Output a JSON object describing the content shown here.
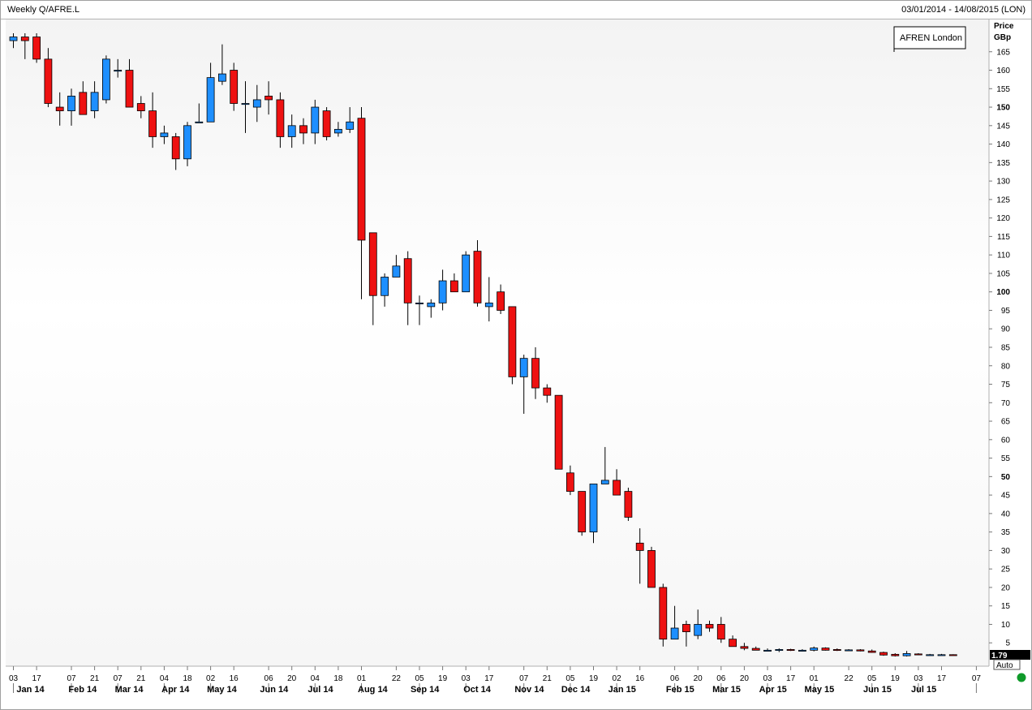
{
  "header": {
    "title": "Weekly Q/AFRE.L",
    "date_range": "03/01/2014 - 14/08/2015 (LON)"
  },
  "legend": {
    "label": "AFREN London"
  },
  "axis": {
    "title_line1": "Price",
    "title_line2": "GBp",
    "last_value": "1.79",
    "auto_label": "Auto"
  },
  "colors": {
    "up": "#1e8fff",
    "down": "#ee1111",
    "wick": "#000000",
    "status": "#0f9a2a"
  },
  "chart_data": {
    "type": "candlestick",
    "ylim": [
      0,
      170
    ],
    "yticks": [
      5,
      10,
      15,
      20,
      25,
      30,
      35,
      40,
      45,
      50,
      55,
      60,
      65,
      70,
      75,
      80,
      85,
      90,
      95,
      100,
      105,
      110,
      115,
      120,
      125,
      130,
      135,
      140,
      145,
      150,
      155,
      160,
      165
    ],
    "yticks_bold": [
      50,
      100,
      150
    ],
    "day_ticks": [
      "03",
      "17",
      "07",
      "21",
      "07",
      "21",
      "04",
      "18",
      "02",
      "16",
      "06",
      "20",
      "04",
      "18",
      "01",
      "22",
      "05",
      "19",
      "03",
      "17",
      "07",
      "21",
      "05",
      "19",
      "02",
      "16",
      "06",
      "20",
      "06",
      "20",
      "03",
      "17",
      "01",
      "22",
      "05",
      "19",
      "03",
      "17",
      "07"
    ],
    "day_tick_weeks": [
      0,
      2,
      5,
      7,
      9,
      11,
      13,
      15,
      17,
      19,
      22,
      24,
      26,
      28,
      30,
      33,
      35,
      37,
      39,
      41,
      44,
      46,
      48,
      50,
      52,
      54,
      57,
      59,
      61,
      63,
      65,
      67,
      69,
      72,
      74,
      76,
      78,
      80,
      83
    ],
    "months": [
      "Jan 14",
      "Feb 14",
      "Mar 14",
      "Apr 14",
      "May 14",
      "Jun 14",
      "Jul 14",
      "Aug 14",
      "Sep 14",
      "Oct 14",
      "Nov 14",
      "Dec 14",
      "Jan 15",
      "Feb 15",
      "Mar 15",
      "Apr 15",
      "May 15",
      "Jun 15",
      "Jul 15"
    ],
    "month_weeks": [
      0,
      4.5,
      8.5,
      12.5,
      16.5,
      21,
      25,
      29.5,
      34,
      38.5,
      43,
      47,
      51,
      56,
      60,
      64,
      68,
      73,
      77
    ],
    "candles": [
      {
        "date": "2014-01-03",
        "open": 168,
        "high": 170,
        "low": 166,
        "close": 169
      },
      {
        "date": "2014-01-10",
        "open": 169,
        "high": 170,
        "low": 163,
        "close": 168
      },
      {
        "date": "2014-01-17",
        "open": 169,
        "high": 170,
        "low": 162,
        "close": 163
      },
      {
        "date": "2014-01-24",
        "open": 163,
        "high": 166,
        "low": 150,
        "close": 151
      },
      {
        "date": "2014-01-31",
        "open": 150,
        "high": 154,
        "low": 145,
        "close": 149
      },
      {
        "date": "2014-02-07",
        "open": 149,
        "high": 155,
        "low": 145,
        "close": 153
      },
      {
        "date": "2014-02-14",
        "open": 154,
        "high": 157,
        "low": 148,
        "close": 148
      },
      {
        "date": "2014-02-21",
        "open": 149,
        "high": 157,
        "low": 147,
        "close": 154
      },
      {
        "date": "2014-02-28",
        "open": 152,
        "high": 164,
        "low": 151,
        "close": 163
      },
      {
        "date": "2014-03-07",
        "open": 160,
        "high": 163,
        "low": 158,
        "close": 160
      },
      {
        "date": "2014-03-14",
        "open": 160,
        "high": 163,
        "low": 150,
        "close": 150
      },
      {
        "date": "2014-03-21",
        "open": 151,
        "high": 153,
        "low": 147,
        "close": 149
      },
      {
        "date": "2014-03-28",
        "open": 149,
        "high": 154,
        "low": 139,
        "close": 142
      },
      {
        "date": "2014-04-04",
        "open": 142,
        "high": 145,
        "low": 140,
        "close": 143
      },
      {
        "date": "2014-04-11",
        "open": 142,
        "high": 143,
        "low": 133,
        "close": 136
      },
      {
        "date": "2014-04-18",
        "open": 136,
        "high": 146,
        "low": 134,
        "close": 145
      },
      {
        "date": "2014-04-25",
        "open": 146,
        "high": 151,
        "low": 146,
        "close": 146
      },
      {
        "date": "2014-05-02",
        "open": 146,
        "high": 162,
        "low": 146,
        "close": 158
      },
      {
        "date": "2014-05-09",
        "open": 157,
        "high": 167,
        "low": 156,
        "close": 159
      },
      {
        "date": "2014-05-16",
        "open": 160,
        "high": 162,
        "low": 149,
        "close": 151
      },
      {
        "date": "2014-05-23",
        "open": 151,
        "high": 157,
        "low": 143,
        "close": 151
      },
      {
        "date": "2014-05-30",
        "open": 150,
        "high": 156,
        "low": 146,
        "close": 152
      },
      {
        "date": "2014-06-06",
        "open": 153,
        "high": 157,
        "low": 148,
        "close": 152
      },
      {
        "date": "2014-06-13",
        "open": 152,
        "high": 154,
        "low": 139,
        "close": 142
      },
      {
        "date": "2014-06-20",
        "open": 142,
        "high": 148,
        "low": 139,
        "close": 145
      },
      {
        "date": "2014-06-27",
        "open": 145,
        "high": 147,
        "low": 140,
        "close": 143
      },
      {
        "date": "2014-07-04",
        "open": 143,
        "high": 152,
        "low": 140,
        "close": 150
      },
      {
        "date": "2014-07-11",
        "open": 149,
        "high": 150,
        "low": 141,
        "close": 142
      },
      {
        "date": "2014-07-18",
        "open": 143,
        "high": 146,
        "low": 142,
        "close": 144
      },
      {
        "date": "2014-07-25",
        "open": 144,
        "high": 150,
        "low": 143,
        "close": 146
      },
      {
        "date": "2014-08-01",
        "open": 147,
        "high": 150,
        "low": 98,
        "close": 114
      },
      {
        "date": "2014-08-08",
        "open": 116,
        "high": 116,
        "low": 91,
        "close": 99
      },
      {
        "date": "2014-08-15",
        "open": 99,
        "high": 105,
        "low": 96,
        "close": 104
      },
      {
        "date": "2014-08-22",
        "open": 104,
        "high": 110,
        "low": 104,
        "close": 107
      },
      {
        "date": "2014-08-29",
        "open": 109,
        "high": 111,
        "low": 91,
        "close": 97
      },
      {
        "date": "2014-09-05",
        "open": 97,
        "high": 99,
        "low": 91,
        "close": 97
      },
      {
        "date": "2014-09-12",
        "open": 96,
        "high": 98,
        "low": 93,
        "close": 97
      },
      {
        "date": "2014-09-19",
        "open": 97,
        "high": 106,
        "low": 95,
        "close": 103
      },
      {
        "date": "2014-09-26",
        "open": 103,
        "high": 105,
        "low": 100,
        "close": 100
      },
      {
        "date": "2014-10-03",
        "open": 100,
        "high": 111,
        "low": 100,
        "close": 110
      },
      {
        "date": "2014-10-10",
        "open": 111,
        "high": 114,
        "low": 96,
        "close": 97
      },
      {
        "date": "2014-10-17",
        "open": 96,
        "high": 104,
        "low": 92,
        "close": 97
      },
      {
        "date": "2014-10-24",
        "open": 100,
        "high": 102,
        "low": 94,
        "close": 95
      },
      {
        "date": "2014-10-31",
        "open": 96,
        "high": 96,
        "low": 75,
        "close": 77
      },
      {
        "date": "2014-11-07",
        "open": 77,
        "high": 83,
        "low": 67,
        "close": 82
      },
      {
        "date": "2014-11-14",
        "open": 82,
        "high": 85,
        "low": 71,
        "close": 74
      },
      {
        "date": "2014-11-21",
        "open": 74,
        "high": 75,
        "low": 70,
        "close": 72
      },
      {
        "date": "2014-11-28",
        "open": 72,
        "high": 72,
        "low": 52,
        "close": 52
      },
      {
        "date": "2014-12-05",
        "open": 51,
        "high": 53,
        "low": 45,
        "close": 46
      },
      {
        "date": "2014-12-12",
        "open": 46,
        "high": 46,
        "low": 34,
        "close": 35
      },
      {
        "date": "2014-12-19",
        "open": 35,
        "high": 48,
        "low": 32,
        "close": 48
      },
      {
        "date": "2014-12-26",
        "open": 48,
        "high": 58,
        "low": 48,
        "close": 49
      },
      {
        "date": "2015-01-02",
        "open": 49,
        "high": 52,
        "low": 45,
        "close": 45
      },
      {
        "date": "2015-01-09",
        "open": 46,
        "high": 47,
        "low": 38,
        "close": 39
      },
      {
        "date": "2015-01-16",
        "open": 32,
        "high": 36,
        "low": 21,
        "close": 30
      },
      {
        "date": "2015-01-23",
        "open": 30,
        "high": 31,
        "low": 20,
        "close": 20
      },
      {
        "date": "2015-01-30",
        "open": 20,
        "high": 21,
        "low": 4,
        "close": 6
      },
      {
        "date": "2015-02-06",
        "open": 6,
        "high": 15,
        "low": 6,
        "close": 9
      },
      {
        "date": "2015-02-13",
        "open": 10,
        "high": 11,
        "low": 4,
        "close": 8
      },
      {
        "date": "2015-02-20",
        "open": 7,
        "high": 14,
        "low": 6,
        "close": 10
      },
      {
        "date": "2015-02-27",
        "open": 10,
        "high": 11,
        "low": 8,
        "close": 9
      },
      {
        "date": "2015-03-06",
        "open": 10,
        "high": 12,
        "low": 5,
        "close": 6
      },
      {
        "date": "2015-03-13",
        "open": 6,
        "high": 7,
        "low": 4,
        "close": 4
      },
      {
        "date": "2015-03-20",
        "open": 4,
        "high": 5,
        "low": 3,
        "close": 3.5
      },
      {
        "date": "2015-03-27",
        "open": 3.5,
        "high": 4,
        "low": 3,
        "close": 3
      },
      {
        "date": "2015-04-03",
        "open": 3,
        "high": 3.5,
        "low": 2.8,
        "close": 3
      },
      {
        "date": "2015-04-10",
        "open": 3,
        "high": 3.5,
        "low": 2.5,
        "close": 3.2
      },
      {
        "date": "2015-04-17",
        "open": 3.2,
        "high": 3.4,
        "low": 2.8,
        "close": 3
      },
      {
        "date": "2015-04-24",
        "open": 3,
        "high": 3.3,
        "low": 2.7,
        "close": 3
      },
      {
        "date": "2015-05-01",
        "open": 3,
        "high": 4,
        "low": 2.7,
        "close": 3.6
      },
      {
        "date": "2015-05-08",
        "open": 3.6,
        "high": 3.8,
        "low": 2.9,
        "close": 3
      },
      {
        "date": "2015-05-15",
        "open": 3.2,
        "high": 3.5,
        "low": 2.8,
        "close": 3
      },
      {
        "date": "2015-05-22",
        "open": 3,
        "high": 3.3,
        "low": 2.8,
        "close": 3.1
      },
      {
        "date": "2015-05-29",
        "open": 3.1,
        "high": 3.3,
        "low": 2.7,
        "close": 2.8
      },
      {
        "date": "2015-06-05",
        "open": 2.8,
        "high": 3.2,
        "low": 2.3,
        "close": 2.4
      },
      {
        "date": "2015-06-12",
        "open": 2.4,
        "high": 2.6,
        "low": 1.5,
        "close": 1.7
      },
      {
        "date": "2015-06-19",
        "open": 1.9,
        "high": 2.2,
        "low": 1.3,
        "close": 1.5
      },
      {
        "date": "2015-06-26",
        "open": 1.5,
        "high": 2.8,
        "low": 1.3,
        "close": 2.1
      },
      {
        "date": "2015-07-03",
        "open": 2,
        "high": 2.2,
        "low": 1.7,
        "close": 1.8
      },
      {
        "date": "2015-07-10",
        "open": 1.8,
        "high": 2,
        "low": 1.6,
        "close": 1.8
      },
      {
        "date": "2015-07-17",
        "open": 1.8,
        "high": 2,
        "low": 1.6,
        "close": 1.8
      },
      {
        "date": "2015-07-24",
        "open": 1.8,
        "high": 1.9,
        "low": 1.6,
        "close": 1.79
      }
    ]
  }
}
